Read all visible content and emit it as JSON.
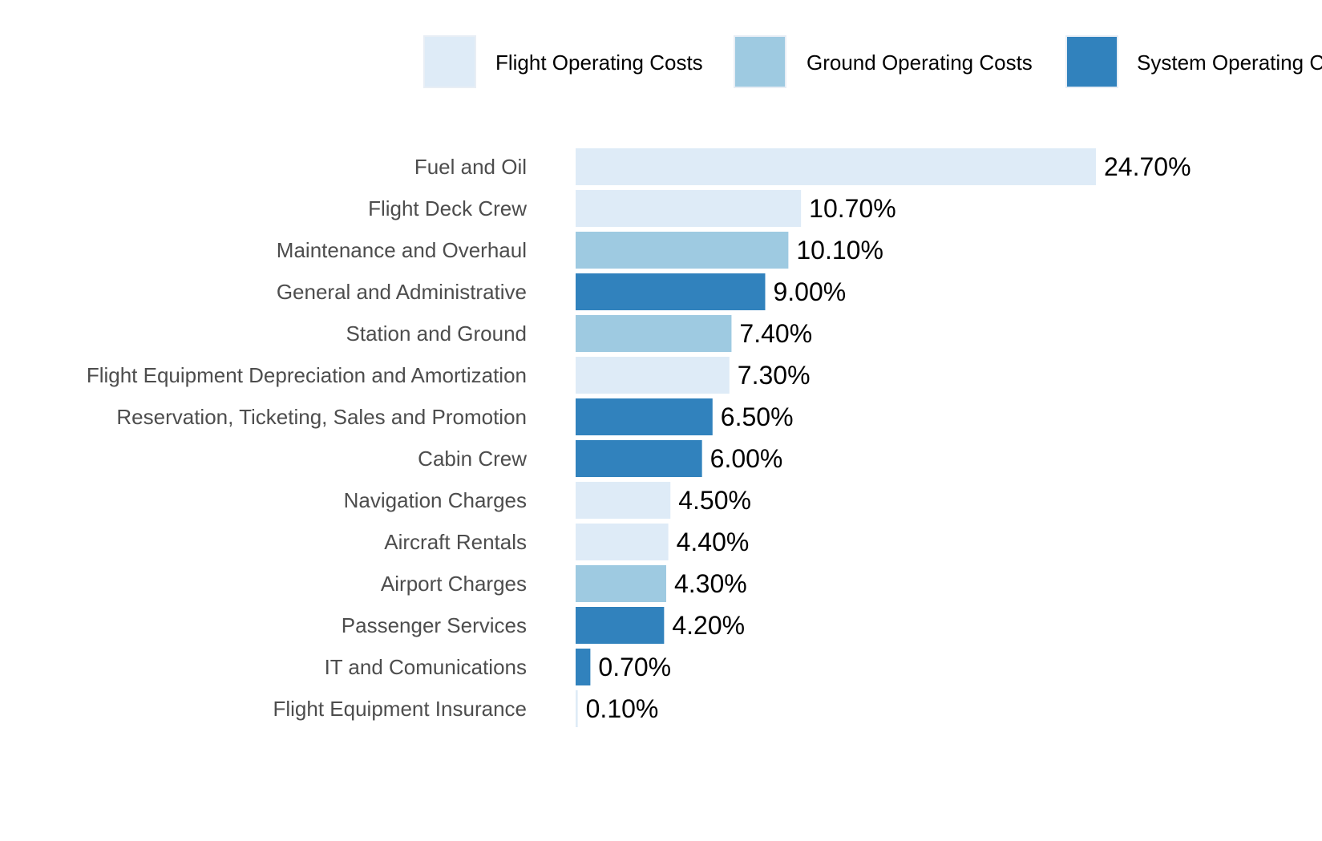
{
  "chart_data": {
    "type": "bar",
    "orientation": "horizontal",
    "title": "",
    "xlabel": "",
    "ylabel": "",
    "categories": [
      "Fuel and Oil",
      "Flight Deck Crew",
      "Maintenance and Overhaul",
      "General and Administrative",
      "Station and Ground",
      "Flight Equipment Depreciation and Amortization",
      "Reservation, Ticketing, Sales and Promotion",
      "Cabin Crew",
      "Navigation Charges",
      "Aircraft Rentals",
      "Airport Charges",
      "Passenger Services",
      "IT and Comunications",
      "Flight Equipment Insurance"
    ],
    "values": [
      24.7,
      10.7,
      10.1,
      9.0,
      7.4,
      7.3,
      6.5,
      6.0,
      4.5,
      4.4,
      4.3,
      4.2,
      0.7,
      0.1
    ],
    "value_labels": [
      "24.70%",
      "10.70%",
      "10.10%",
      "9.00%",
      "7.40%",
      "7.30%",
      "6.50%",
      "6.00%",
      "4.50%",
      "4.40%",
      "4.30%",
      "4.20%",
      "0.70%",
      "0.10%"
    ],
    "groups": [
      "Flight Operating Costs",
      "Flight Operating Costs",
      "Ground Operating Costs",
      "System Operating Costs",
      "Ground Operating Costs",
      "Flight Operating Costs",
      "System Operating Costs",
      "System Operating Costs",
      "Flight Operating Costs",
      "Flight Operating Costs",
      "Ground Operating Costs",
      "System Operating Costs",
      "System Operating Costs",
      "Flight Operating Costs"
    ],
    "legend": [
      {
        "name": "Flight Operating Costs",
        "color": "#deebf7"
      },
      {
        "name": "Ground Operating Costs",
        "color": "#9ecae1"
      },
      {
        "name": "System Operating Costs",
        "color": "#3182bd"
      }
    ],
    "legend_position": "top",
    "xlim": [
      0,
      24.7
    ],
    "grid": false
  }
}
